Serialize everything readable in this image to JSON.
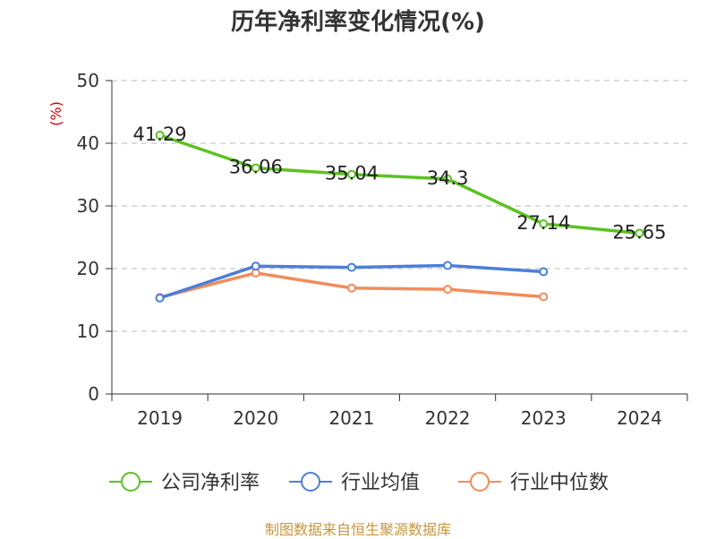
{
  "chart_data": {
    "type": "line",
    "title": "历年净利率变化情况(%)",
    "ylabel": "(%)",
    "xlabel": "",
    "categories": [
      "2019",
      "2020",
      "2021",
      "2022",
      "2023",
      "2024"
    ],
    "ylim": [
      0,
      50
    ],
    "yticks": [
      0,
      10,
      20,
      30,
      40,
      50
    ],
    "grid": true,
    "legend_position": "bottom",
    "series": [
      {
        "name": "公司净利率",
        "color": "#5cc222",
        "values": [
          41.29,
          36.06,
          35.04,
          34.3,
          27.14,
          25.65
        ],
        "labels": [
          "41.29",
          "36.06",
          "35.04",
          "34.3",
          "27.14",
          "25.65"
        ]
      },
      {
        "name": "行业均值",
        "color": "#4b7fd9",
        "values": [
          15.3,
          20.4,
          20.2,
          20.5,
          19.5,
          null
        ]
      },
      {
        "name": "行业中位数",
        "color": "#f28c5a",
        "values": [
          15.4,
          19.3,
          16.9,
          16.7,
          15.5,
          null
        ]
      }
    ]
  },
  "source_text": "制图数据来自恒生聚源数据库"
}
